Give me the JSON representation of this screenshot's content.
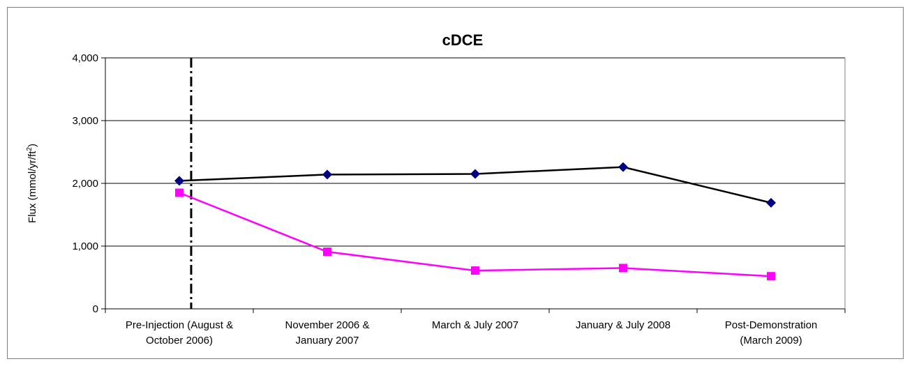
{
  "chart_data": {
    "type": "line",
    "title": "cDCE",
    "xlabel": "",
    "ylabel_main": "Flux (mmol/yr/ft",
    "ylabel_sup": "2",
    "ylabel_end": ")",
    "ylim": [
      0,
      4000
    ],
    "yticks": [
      0,
      1000,
      2000,
      3000,
      4000
    ],
    "ytick_labels": [
      "0",
      "1,000",
      "2,000",
      "3,000",
      "4,000"
    ],
    "grid": true,
    "categories": [
      [
        "Pre-Injection (August &",
        "October 2006)"
      ],
      [
        "November 2006 &",
        "January 2007"
      ],
      [
        "March & July 2007"
      ],
      [
        "January & July 2008"
      ],
      [
        "Post-Demonstration",
        "(March 2009)"
      ]
    ],
    "series": [
      {
        "color": "#000000",
        "marker": "diamond",
        "marker_color": "#000080",
        "values": [
          2040,
          2140,
          2150,
          2260,
          1690
        ]
      },
      {
        "color": "#ff00ff",
        "marker": "square",
        "marker_color": "#ff00ff",
        "values": [
          1850,
          910,
          610,
          650,
          520
        ]
      }
    ],
    "reference_line": {
      "style": "dash-dot",
      "color": "#000000",
      "category_position": 0.58
    }
  }
}
